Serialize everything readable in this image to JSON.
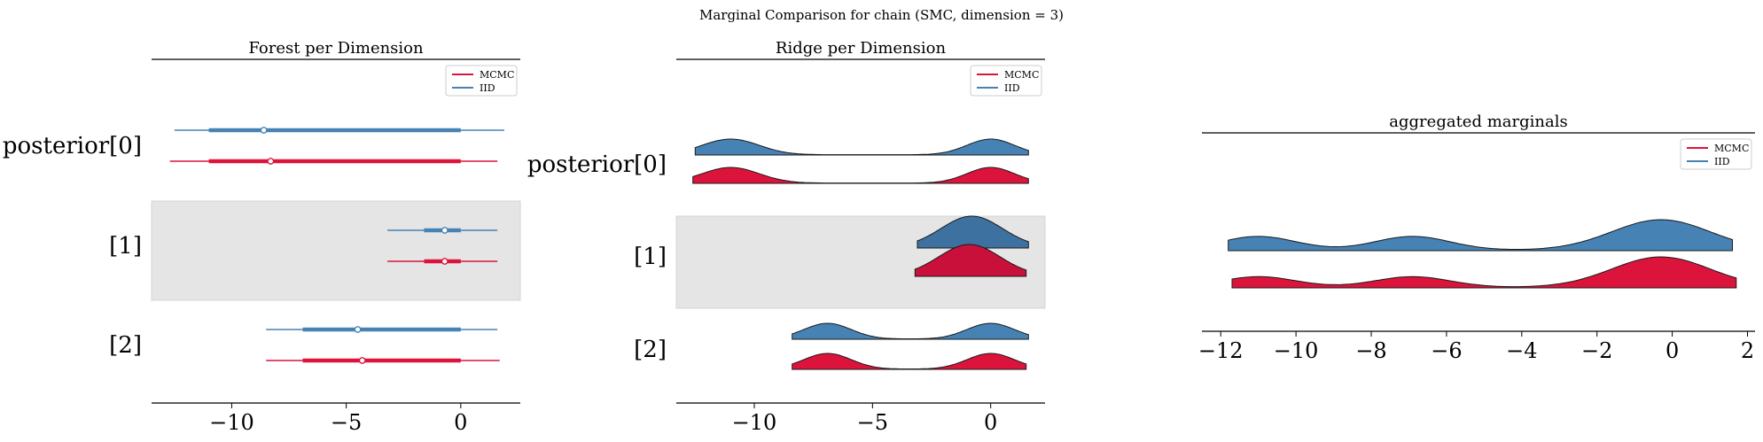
{
  "figure": {
    "title": "Marginal Comparison for chain (SMC, dimension = 3)"
  },
  "colors": {
    "mcmc": "#dc143c",
    "iid": "#4682b4",
    "mcmc_dark": "#c8103a",
    "iid_dark": "#3d71a0",
    "highlight": "#e5e5e5"
  },
  "chart_data": [
    {
      "type": "forest",
      "title": "Forest per Dimension",
      "row_labels": [
        "posterior[0]",
        "[1]",
        "[2]"
      ],
      "highlighted_row": 1,
      "xticks": [
        -10,
        -5,
        0
      ],
      "xtick_labels": [
        "−10",
        "−5",
        "0"
      ],
      "xlim": [
        -13.5,
        2.6
      ],
      "legend": {
        "position": "upper-right",
        "entries": [
          "MCMC",
          "IID"
        ]
      },
      "series": [
        {
          "name": "IID",
          "rows": [
            {
              "low": -12.5,
              "q1": -11.0,
              "median": -8.6,
              "q3": 0.0,
              "high": 1.9
            },
            {
              "low": -3.2,
              "q1": -1.6,
              "median": -0.7,
              "q3": 0.0,
              "high": 1.6
            },
            {
              "low": -8.5,
              "q1": -6.9,
              "median": -4.5,
              "q3": 0.0,
              "high": 1.6
            }
          ]
        },
        {
          "name": "MCMC",
          "rows": [
            {
              "low": -12.7,
              "q1": -11.0,
              "median": -8.3,
              "q3": 0.0,
              "high": 1.6
            },
            {
              "low": -3.2,
              "q1": -1.6,
              "median": -0.7,
              "q3": 0.0,
              "high": 1.6
            },
            {
              "low": -8.5,
              "q1": -6.9,
              "median": -4.3,
              "q3": 0.0,
              "high": 1.7
            }
          ]
        }
      ]
    },
    {
      "type": "ridge",
      "title": "Ridge per Dimension",
      "row_labels": [
        "posterior[0]",
        "[1]",
        "[2]"
      ],
      "highlighted_row": 1,
      "xticks": [
        -10,
        -5,
        0
      ],
      "xtick_labels": [
        "−10",
        "−5",
        "0"
      ],
      "xlim": [
        -13.3,
        2.3
      ],
      "legend": {
        "position": "upper-right",
        "entries": [
          "MCMC",
          "IID"
        ]
      },
      "series": [
        {
          "name": "IID",
          "rows": [
            {
              "range": [
                -12.5,
                1.6
              ],
              "modes": [
                [
                  -11.0,
                  1.0,
                  1.2
                ],
                [
                  0.0,
                  1.0,
                  1.0
                ]
              ]
            },
            {
              "range": [
                -3.1,
                1.6
              ],
              "modes": [
                [
                  -0.8,
                  1.0,
                  1.3
                ]
              ]
            },
            {
              "range": [
                -8.4,
                1.6
              ],
              "modes": [
                [
                  -6.9,
                  1.0,
                  1.0
                ],
                [
                  0.0,
                  1.0,
                  1.0
                ]
              ]
            }
          ]
        },
        {
          "name": "MCMC",
          "rows": [
            {
              "range": [
                -12.6,
                1.6
              ],
              "modes": [
                [
                  -11.0,
                  1.0,
                  1.2
                ],
                [
                  0.0,
                  1.0,
                  1.0
                ]
              ]
            },
            {
              "range": [
                -3.2,
                1.5
              ],
              "modes": [
                [
                  -0.9,
                  1.0,
                  1.3
                ]
              ]
            },
            {
              "range": [
                -8.4,
                1.5
              ],
              "modes": [
                [
                  -6.9,
                  1.0,
                  1.0
                ],
                [
                  0.0,
                  1.0,
                  1.0
                ]
              ]
            }
          ]
        }
      ]
    },
    {
      "type": "ridge",
      "title": "aggregated marginals",
      "row_labels": [],
      "xticks": [
        -12,
        -10,
        -8,
        -6,
        -4,
        -2,
        0,
        2
      ],
      "xtick_labels": [
        "−12",
        "−10",
        "−8",
        "−6",
        "−4",
        "−2",
        "0",
        "2"
      ],
      "xlim": [
        -12.5,
        2.2
      ],
      "legend": {
        "position": "upper-right",
        "entries": [
          "MCMC",
          "IID"
        ]
      },
      "series": [
        {
          "name": "IID",
          "range": [
            -11.8,
            1.6
          ],
          "modes": [
            [
              -11.0,
              0.45,
              1.0
            ],
            [
              -6.9,
              0.45,
              1.0
            ],
            [
              -0.3,
              1.0,
              1.3
            ]
          ]
        },
        {
          "name": "MCMC",
          "range": [
            -11.7,
            1.7
          ],
          "modes": [
            [
              -11.0,
              0.35,
              1.0
            ],
            [
              -6.9,
              0.35,
              1.0
            ],
            [
              -0.3,
              1.0,
              1.3
            ]
          ]
        }
      ]
    }
  ]
}
